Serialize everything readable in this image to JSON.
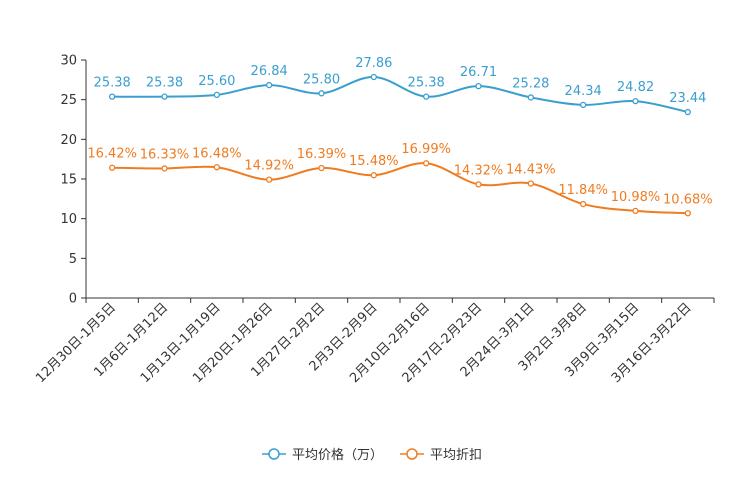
{
  "chart_data": {
    "type": "line",
    "title": "",
    "xlabel": "",
    "ylabel": "",
    "ylim": [
      0,
      30
    ],
    "yticks": [
      "0",
      "5",
      "10",
      "15",
      "20",
      "25",
      "30"
    ],
    "grid": false,
    "legend_position": "bottom-center",
    "categories": [
      "12月30日-1月5日",
      "1月6日-1月12日",
      "1月13日-1月19日",
      "1月20日-1月26日",
      "1月27日-2月2日",
      "2月3日-2月9日",
      "2月10日-2月16日",
      "2月17日-2月23日",
      "2月24日-3月1日",
      "3月2日-3月8日",
      "3月9日-3月15日",
      "3月16日-3月22日"
    ],
    "series": [
      {
        "name": "平均价格（万）",
        "color": "#3a9fd0",
        "values": [
          25.38,
          25.38,
          25.6,
          26.84,
          25.8,
          27.86,
          25.38,
          26.71,
          25.28,
          24.34,
          24.82,
          23.44
        ],
        "labels": [
          "25.38",
          "25.38",
          "25.60",
          "26.84",
          "25.80",
          "27.86",
          "25.38",
          "26.71",
          "25.28",
          "24.34",
          "24.82",
          "23.44"
        ]
      },
      {
        "name": "平均折扣",
        "color": "#f07c20",
        "values": [
          16.42,
          16.33,
          16.48,
          14.92,
          16.39,
          15.48,
          16.99,
          14.32,
          14.43,
          11.84,
          10.98,
          10.68
        ],
        "labels": [
          "16.42%",
          "16.33%",
          "16.48%",
          "14.92%",
          "16.39%",
          "15.48%",
          "16.99%",
          "14.32%",
          "14.43%",
          "11.84%",
          "10.98%",
          "10.68%"
        ]
      }
    ]
  }
}
